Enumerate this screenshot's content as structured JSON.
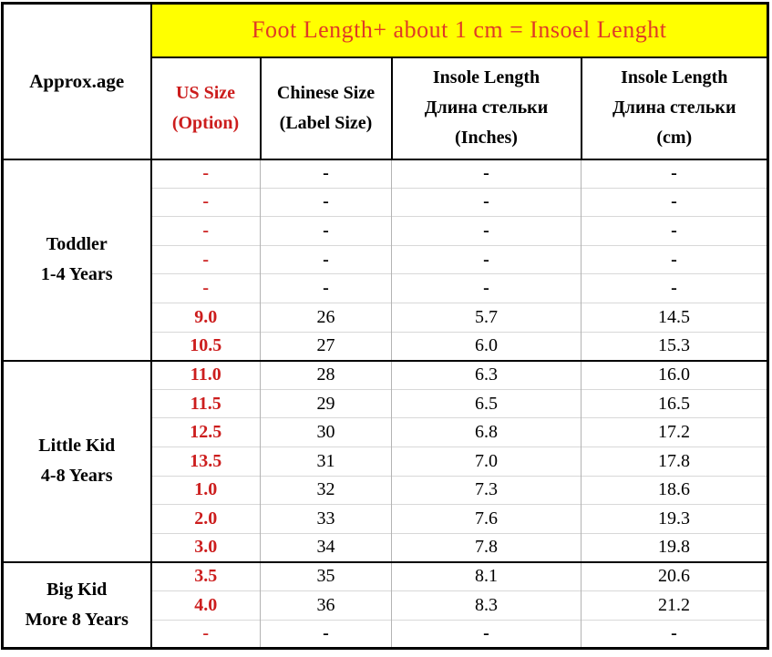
{
  "banner": {
    "text": "Foot Length+ about 1 cm = Insoel Lenght"
  },
  "header": {
    "age": "Approx.age",
    "us_size": [
      "US Size",
      "(Option)"
    ],
    "chinese_size": [
      "Chinese Size",
      "(Label Size)"
    ],
    "insole_inches": [
      "Insole Length",
      "Длина стельки",
      "(Inches)"
    ],
    "insole_cm": [
      "Insole Length",
      "Длина стельки",
      "(cm)"
    ]
  },
  "groups": [
    {
      "label_lines": [
        "Toddler",
        "1-4 Years"
      ],
      "rows": [
        [
          "-",
          "-",
          "-",
          "-"
        ],
        [
          "-",
          "-",
          "-",
          "-"
        ],
        [
          "-",
          "-",
          "-",
          "-"
        ],
        [
          "-",
          "-",
          "-",
          "-"
        ],
        [
          "-",
          "-",
          "-",
          "-"
        ],
        [
          "9.0",
          "26",
          "5.7",
          "14.5"
        ],
        [
          "10.5",
          "27",
          "6.0",
          "15.3"
        ]
      ]
    },
    {
      "label_lines": [
        "Little Kid",
        "4-8 Years"
      ],
      "rows": [
        [
          "11.0",
          "28",
          "6.3",
          "16.0"
        ],
        [
          "11.5",
          "29",
          "6.5",
          "16.5"
        ],
        [
          "12.5",
          "30",
          "6.8",
          "17.2"
        ],
        [
          "13.5",
          "31",
          "7.0",
          "17.8"
        ],
        [
          "1.0",
          "32",
          "7.3",
          "18.6"
        ],
        [
          "2.0",
          "33",
          "7.6",
          "19.3"
        ],
        [
          "3.0",
          "34",
          "7.8",
          "19.8"
        ]
      ]
    },
    {
      "label_lines": [
        "Big Kid",
        "More 8 Years"
      ],
      "rows": [
        [
          "3.5",
          "35",
          "8.1",
          "20.6"
        ],
        [
          "4.0",
          "36",
          "8.3",
          "21.2"
        ],
        [
          "-",
          "-",
          "-",
          "-"
        ]
      ]
    }
  ],
  "colors": {
    "banner_bg": "#ffff00",
    "banner_text": "#e03a26",
    "accent_red": "#cc1d1d",
    "grid_vertical": "#b3b3b3",
    "grid_horizontal": "#d8d8d8",
    "border_black": "#000000"
  },
  "chart_data": {
    "type": "table",
    "title": "Foot Length+ about 1 cm = Insoel Lenght",
    "columns": [
      "Approx.age",
      "US Size (Option)",
      "Chinese Size (Label Size)",
      "Insole Length Длина стельки (Inches)",
      "Insole Length Длина стельки (cm)"
    ],
    "rows": [
      [
        "Toddler 1-4 Years",
        "-",
        "-",
        "-",
        "-"
      ],
      [
        "Toddler 1-4 Years",
        "-",
        "-",
        "-",
        "-"
      ],
      [
        "Toddler 1-4 Years",
        "-",
        "-",
        "-",
        "-"
      ],
      [
        "Toddler 1-4 Years",
        "-",
        "-",
        "-",
        "-"
      ],
      [
        "Toddler 1-4 Years",
        "-",
        "-",
        "-",
        "-"
      ],
      [
        "Toddler 1-4 Years",
        "9.0",
        "26",
        "5.7",
        "14.5"
      ],
      [
        "Toddler 1-4 Years",
        "10.5",
        "27",
        "6.0",
        "15.3"
      ],
      [
        "Little Kid 4-8 Years",
        "11.0",
        "28",
        "6.3",
        "16.0"
      ],
      [
        "Little Kid 4-8 Years",
        "11.5",
        "29",
        "6.5",
        "16.5"
      ],
      [
        "Little Kid 4-8 Years",
        "12.5",
        "30",
        "6.8",
        "17.2"
      ],
      [
        "Little Kid 4-8 Years",
        "13.5",
        "31",
        "7.0",
        "17.8"
      ],
      [
        "Little Kid 4-8 Years",
        "1.0",
        "32",
        "7.3",
        "18.6"
      ],
      [
        "Little Kid 4-8 Years",
        "2.0",
        "33",
        "7.6",
        "19.3"
      ],
      [
        "Little Kid 4-8 Years",
        "3.0",
        "34",
        "7.8",
        "19.8"
      ],
      [
        "Big Kid More 8 Years",
        "3.5",
        "35",
        "8.1",
        "20.6"
      ],
      [
        "Big Kid More 8 Years",
        "4.0",
        "36",
        "8.3",
        "21.2"
      ],
      [
        "Big Kid More 8 Years",
        "-",
        "-",
        "-",
        "-"
      ]
    ]
  }
}
